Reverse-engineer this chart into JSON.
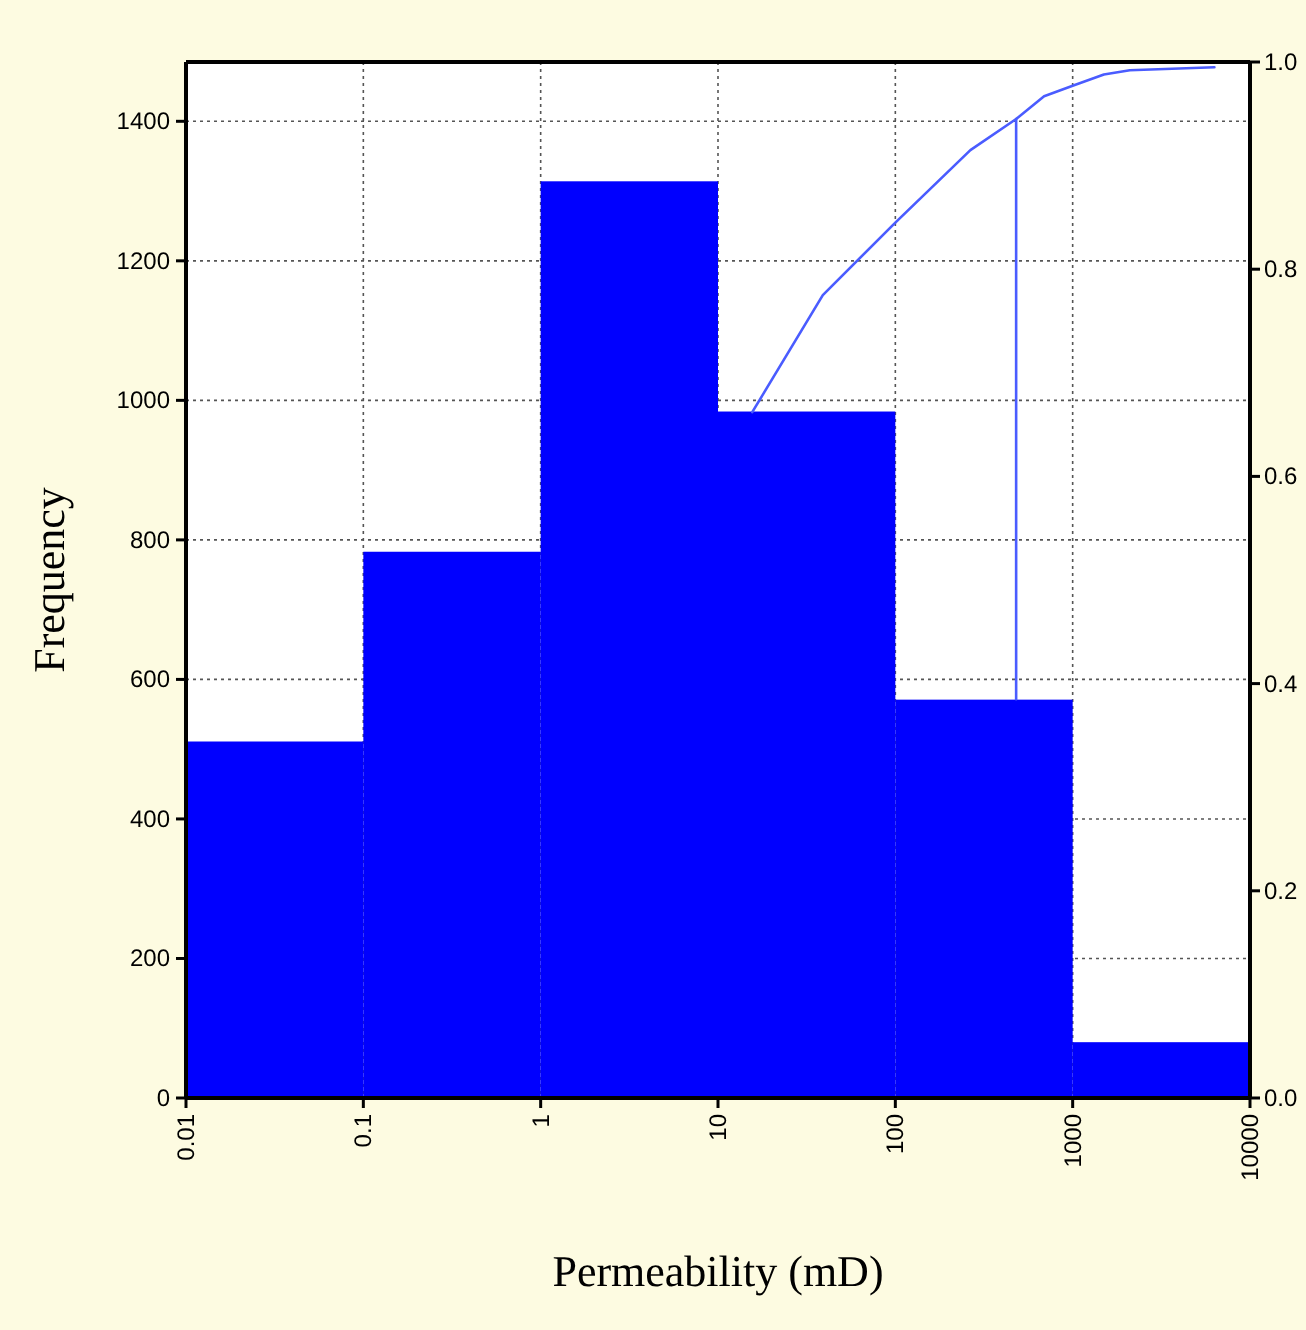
{
  "chart_data": {
    "type": "histogram",
    "xlabel": "Permeability (mD)",
    "ylabel": "Frequency",
    "log": "x",
    "bins": [
      0.01,
      0.1,
      1,
      10,
      100,
      1000,
      10000
    ],
    "values": [
      511,
      783,
      1314,
      984,
      571,
      80
    ],
    "color": "#0000ff",
    "series": [
      {
        "type": "line",
        "axis": "y2",
        "color": "#4a5cff",
        "x": [
          15.6,
          39,
          100,
          265,
          480,
          690,
          1000,
          1500,
          2100,
          6300
        ],
        "values": [
          0.662,
          0.775,
          0.845,
          0.915,
          0.945,
          0.967,
          0.977,
          0.988,
          0.992,
          0.995
        ]
      },
      {
        "type": "line",
        "axis": "y2",
        "color": "#4a5cff",
        "x": [
          480,
          480
        ],
        "values": [
          0.385,
          0.945
        ]
      }
    ],
    "xlim": [
      0.01,
      10000
    ],
    "xticks": [
      0.01,
      0.1,
      1,
      10,
      100,
      1000,
      10000
    ],
    "ylim": [
      0,
      1485
    ],
    "yticks": [
      0,
      200,
      400,
      600,
      800,
      1000,
      1200,
      1400
    ],
    "y2lim": [
      0,
      1
    ],
    "y2ticks": [
      {
        "value": 0,
        "label": "0.0"
      },
      0.2,
      0.4,
      0.6,
      0.8,
      {
        "value": 1,
        "label": "1.0"
      }
    ],
    "grid": true
  }
}
